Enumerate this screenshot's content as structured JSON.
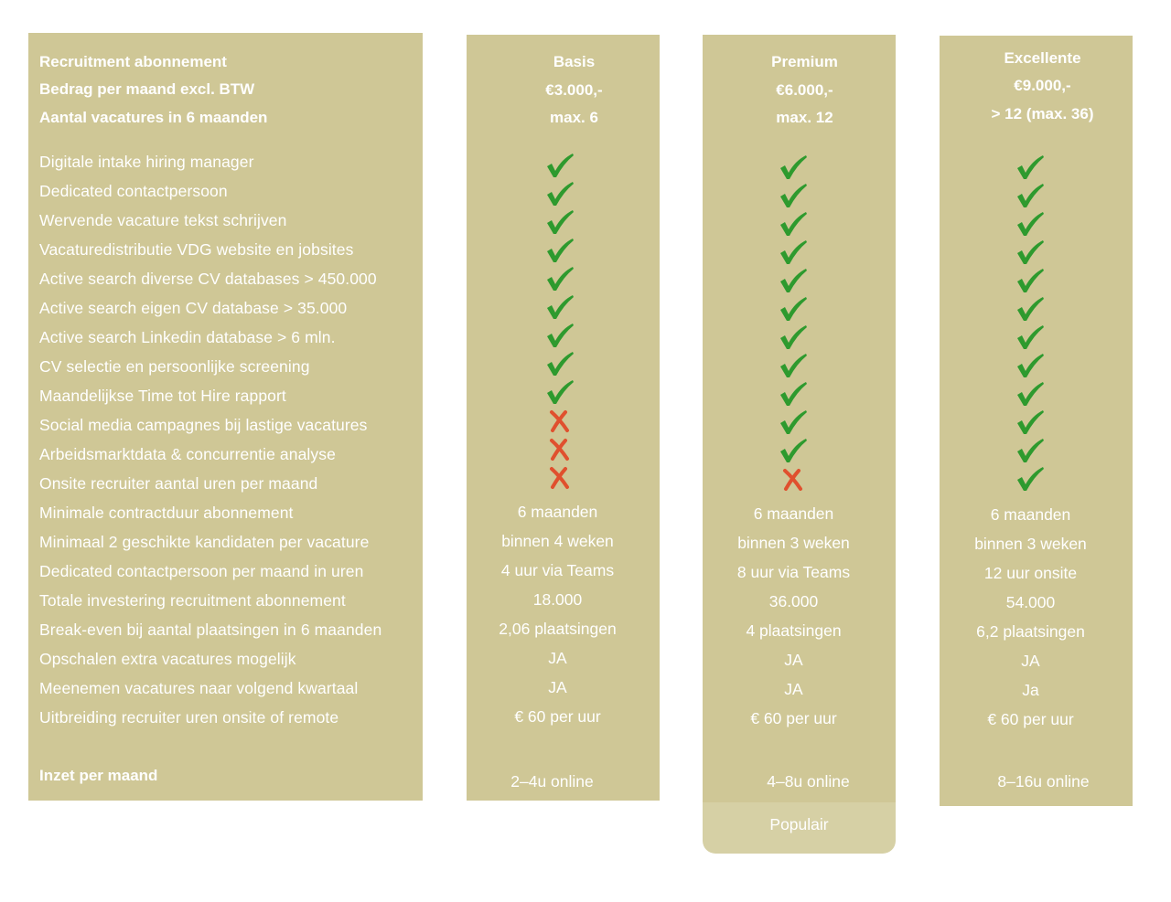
{
  "header_labels": [
    "Recruitment abonnement",
    "Bedrag per maand excl. BTW",
    "Aantal vacatures in 6 maanden"
  ],
  "feature_labels": [
    "Digitale intake hiring manager",
    "Dedicated contactpersoon",
    "Wervende vacature tekst schrijven",
    "Vacaturedistributie VDG website en jobsites",
    "Active search diverse CV databases > 450.000",
    "Active search eigen CV database > 35.000",
    "Active search Linkedin database > 6 mln.",
    "CV selectie en persoonlijke screening",
    "Maandelijkse Time tot Hire rapport",
    "Social media campagnes bij lastige vacatures",
    "Arbeidsmarktdata & concurrentie analyse",
    "Onsite recruiter aantal uren per maand",
    "Minimale contractduur abonnement",
    "Minimaal 2 geschikte kandidaten per vacature",
    "Dedicated contactpersoon per maand in uren",
    "Totale investering recruitment abonnement",
    "Break-even bij aantal plaatsingen in 6 maanden",
    "Opschalen extra vacatures mogelijk",
    "Meenemen vacatures naar volgend kwartaal",
    "Uitbreiding recruiter uren onsite of remote"
  ],
  "inzet_label": "Inzet per maand",
  "plans": [
    {
      "name": "Basis",
      "price": "€3.000,-",
      "vacancies": "max. 6",
      "features": [
        "check",
        "check",
        "check",
        "check",
        "check",
        "check",
        "check",
        "check",
        "check",
        "cross",
        "cross",
        "cross"
      ],
      "values": [
        "6 maanden",
        "binnen 4 weken",
        "4 uur via Teams",
        "18.000",
        "2,06 plaatsingen",
        "JA",
        "JA",
        "€ 60 per uur"
      ],
      "inzet": "2–4u online"
    },
    {
      "name": "Premium",
      "price": "€6.000,-",
      "vacancies": "max. 12",
      "features": [
        "check",
        "check",
        "check",
        "check",
        "check",
        "check",
        "check",
        "check",
        "check",
        "check",
        "check",
        "cross"
      ],
      "values": [
        "6 maanden",
        "binnen 3 weken",
        "8 uur via Teams",
        "36.000",
        "4 plaatsingen",
        "JA",
        "JA",
        "€ 60 per uur"
      ],
      "inzet": "4–8u online",
      "badge": "Populair"
    },
    {
      "name": "Excellente",
      "price": "€9.000,-",
      "vacancies": "> 12 (max. 36)",
      "features": [
        "check",
        "check",
        "check",
        "check",
        "check",
        "check",
        "check",
        "check",
        "check",
        "check",
        "check",
        "check"
      ],
      "values": [
        "6 maanden",
        "binnen 3 weken",
        "12 uur onsite",
        "54.000",
        "6,2 plaatsingen",
        "JA",
        "Ja",
        "€ 60 per uur"
      ],
      "inzet": "8–16u online"
    }
  ],
  "colors": {
    "panel": "#cfc796",
    "badge": "#d6d0a5",
    "check": "#2e9a2e",
    "cross": "#e0502e",
    "text": "#ffffff"
  },
  "icons": {
    "check": "check-icon",
    "cross": "cross-icon"
  }
}
